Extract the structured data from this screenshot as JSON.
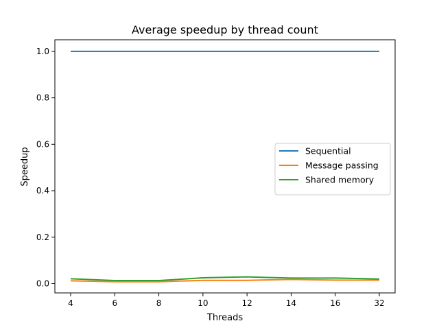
{
  "chart_data": {
    "type": "line",
    "title": "Average speedup by thread count",
    "xlabel": "Threads",
    "ylabel": "Speedup",
    "categories": [
      "4",
      "6",
      "8",
      "10",
      "12",
      "14",
      "16",
      "32"
    ],
    "ylim": [
      -0.04,
      1.05
    ],
    "yticks": [
      "0.0",
      "0.2",
      "0.4",
      "0.6",
      "0.8",
      "1.0"
    ],
    "ytick_values": [
      0.0,
      0.2,
      0.4,
      0.6,
      0.8,
      1.0
    ],
    "grid": false,
    "legend_position": "center-right",
    "series": [
      {
        "name": "Sequential",
        "color": "#1f77b4",
        "values": [
          1.0,
          1.0,
          1.0,
          1.0,
          1.0,
          1.0,
          1.0,
          1.0
        ]
      },
      {
        "name": "Message passing",
        "color": "#ff7f0e",
        "values": [
          0.012,
          0.008,
          0.008,
          0.014,
          0.014,
          0.018,
          0.015,
          0.015
        ]
      },
      {
        "name": "Shared memory",
        "color": "#2ca02c",
        "values": [
          0.021,
          0.013,
          0.013,
          0.025,
          0.029,
          0.024,
          0.024,
          0.02
        ]
      }
    ]
  }
}
